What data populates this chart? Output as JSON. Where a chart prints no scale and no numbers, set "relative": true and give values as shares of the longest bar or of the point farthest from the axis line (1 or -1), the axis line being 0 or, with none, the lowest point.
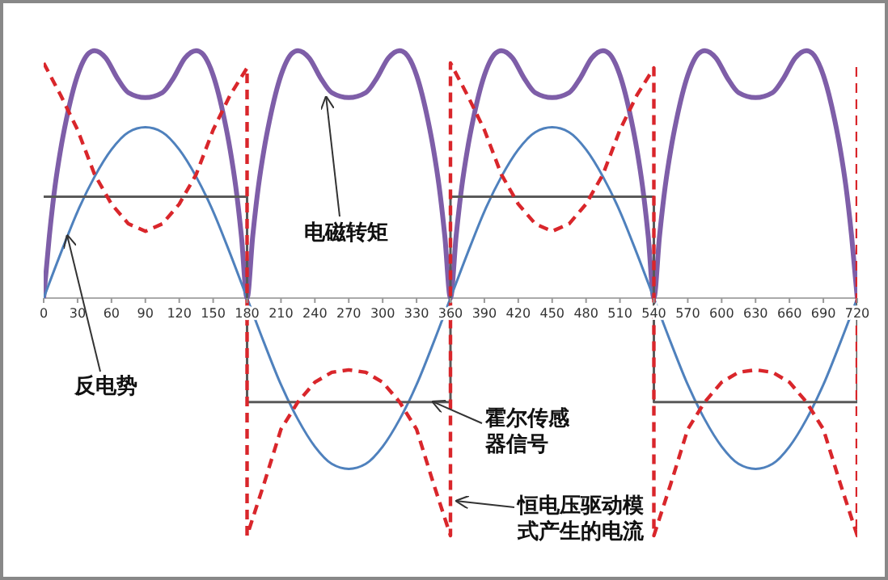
{
  "chart_data": {
    "type": "line",
    "relative": true,
    "xlim": [
      0,
      720
    ],
    "xticks": [
      0,
      30,
      60,
      90,
      120,
      150,
      180,
      210,
      240,
      270,
      300,
      330,
      360,
      390,
      420,
      450,
      480,
      510,
      540,
      570,
      600,
      630,
      660,
      690,
      720
    ],
    "series": [
      {
        "color": "#7e5ea8",
        "x": [
          0,
          5,
          10,
          15,
          20,
          30,
          40,
          45,
          55,
          65,
          75,
          90,
          105,
          115,
          125,
          135,
          140,
          150,
          160,
          165,
          170,
          175,
          180,
          185,
          190,
          195,
          200,
          210,
          220,
          225,
          235,
          245,
          255,
          270,
          285,
          295,
          305,
          315,
          320,
          330,
          340,
          345,
          350,
          355,
          360,
          365,
          370,
          375,
          380,
          390,
          400,
          405,
          415,
          425,
          435,
          450,
          465,
          475,
          485,
          495,
          500,
          510,
          520,
          525,
          530,
          535,
          540,
          545,
          550,
          555,
          560,
          570,
          580,
          585,
          595,
          605,
          615,
          630,
          645,
          655,
          665,
          675,
          680,
          690,
          700,
          705,
          710,
          715,
          720
        ],
        "values": [
          0,
          0.25,
          0.45,
          0.6,
          0.72,
          0.9,
          0.99,
          1,
          0.97,
          0.89,
          0.83,
          0.81,
          0.83,
          0.89,
          0.97,
          1,
          0.99,
          0.9,
          0.72,
          0.6,
          0.45,
          0.25,
          0,
          0.25,
          0.45,
          0.6,
          0.72,
          0.9,
          0.99,
          1,
          0.97,
          0.89,
          0.83,
          0.81,
          0.83,
          0.89,
          0.97,
          1,
          0.99,
          0.9,
          0.72,
          0.6,
          0.45,
          0.25,
          0,
          0.25,
          0.45,
          0.6,
          0.72,
          0.9,
          0.99,
          1,
          0.97,
          0.89,
          0.83,
          0.81,
          0.83,
          0.89,
          0.97,
          1,
          0.99,
          0.9,
          0.72,
          0.6,
          0.45,
          0.25,
          0,
          0.25,
          0.45,
          0.6,
          0.72,
          0.9,
          0.99,
          1,
          0.97,
          0.89,
          0.83,
          0.81,
          0.83,
          0.89,
          0.97,
          1,
          0.99,
          0.9,
          0.72,
          0.6,
          0.45,
          0.25,
          0
        ]
      },
      {
        "color": "#4f81bd",
        "x": [
          0,
          15,
          30,
          45,
          60,
          75,
          90,
          105,
          120,
          135,
          150,
          165,
          180,
          195,
          210,
          225,
          240,
          255,
          270,
          285,
          300,
          315,
          330,
          345,
          360,
          375,
          390,
          405,
          420,
          435,
          450,
          465,
          480,
          495,
          510,
          525,
          540,
          555,
          570,
          585,
          600,
          615,
          630,
          645,
          660,
          675,
          690,
          705,
          720
        ],
        "values": [
          0,
          0.18,
          0.35,
          0.49,
          0.6,
          0.67,
          0.69,
          0.67,
          0.6,
          0.49,
          0.35,
          0.18,
          0,
          -0.18,
          -0.35,
          -0.49,
          -0.6,
          -0.67,
          -0.69,
          -0.67,
          -0.6,
          -0.49,
          -0.35,
          -0.18,
          0,
          0.18,
          0.35,
          0.49,
          0.6,
          0.67,
          0.69,
          0.67,
          0.6,
          0.49,
          0.35,
          0.18,
          0,
          -0.18,
          -0.35,
          -0.49,
          -0.6,
          -0.67,
          -0.69,
          -0.67,
          -0.6,
          -0.49,
          -0.35,
          -0.18,
          0
        ]
      },
      {
        "color": "#595959",
        "x": [
          0,
          180,
          180,
          360,
          360,
          540,
          540,
          720,
          720
        ],
        "values": [
          0.41,
          0.41,
          -0.42,
          -0.42,
          0.41,
          0.41,
          -0.42,
          -0.42,
          0
        ]
      },
      {
        "color": "#d9262b",
        "line_style": "dashed",
        "x": [
          0,
          15,
          30,
          45,
          60,
          75,
          90,
          105,
          120,
          135,
          150,
          165,
          180,
          180,
          195,
          210,
          225,
          240,
          255,
          270,
          285,
          300,
          315,
          330,
          345,
          360,
          360,
          375,
          390,
          405,
          420,
          435,
          450,
          465,
          480,
          495,
          510,
          525,
          540,
          540,
          555,
          570,
          585,
          600,
          615,
          630,
          645,
          660,
          675,
          690,
          705,
          720,
          720
        ],
        "values": [
          0.95,
          0.82,
          0.68,
          0.5,
          0.38,
          0.3,
          0.27,
          0.3,
          0.38,
          0.5,
          0.68,
          0.82,
          0.93,
          -0.96,
          -0.75,
          -0.53,
          -0.42,
          -0.34,
          -0.3,
          -0.29,
          -0.3,
          -0.34,
          -0.42,
          -0.53,
          -0.75,
          -0.96,
          0.95,
          0.82,
          0.68,
          0.5,
          0.38,
          0.3,
          0.27,
          0.3,
          0.38,
          0.5,
          0.68,
          0.82,
          0.93,
          -0.96,
          -0.75,
          -0.53,
          -0.42,
          -0.34,
          -0.3,
          -0.29,
          -0.3,
          -0.34,
          -0.42,
          -0.53,
          -0.75,
          -0.96,
          0.95
        ]
      }
    ],
    "annotations": [
      {
        "text": "电磁转矩",
        "x": 250,
        "y": 0.81
      },
      {
        "text": "反电势",
        "x": 21,
        "y": 0.25
      },
      {
        "text": "霍尔传感器信号",
        "x": 345,
        "y": -0.42
      },
      {
        "text": "恒电压驱动模式产生的电流",
        "x": 366,
        "y": -0.82
      }
    ]
  }
}
